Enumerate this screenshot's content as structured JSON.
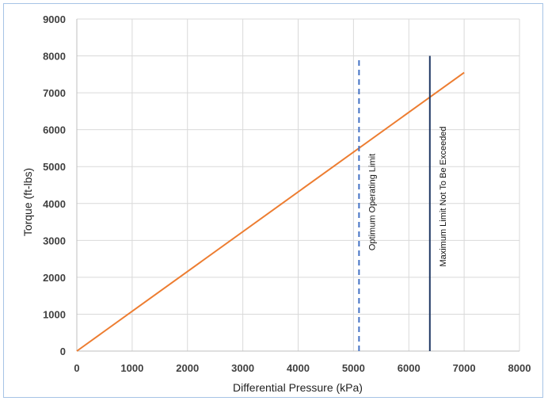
{
  "chart_data": {
    "type": "line",
    "title": "",
    "xlabel": "Differential Pressure (kPa)",
    "ylabel": "Torque (ft-lbs)",
    "xlim": [
      0,
      8000
    ],
    "ylim": [
      0,
      9000
    ],
    "x_ticks": [
      0,
      1000,
      2000,
      3000,
      4000,
      5000,
      6000,
      7000,
      8000
    ],
    "y_ticks": [
      0,
      1000,
      2000,
      3000,
      4000,
      5000,
      6000,
      7000,
      8000,
      9000
    ],
    "grid": true,
    "legend": "none",
    "series": [
      {
        "x": [
          0,
          7000
        ],
        "y": [
          0,
          7550
        ],
        "color": "#ed7d31"
      }
    ],
    "reference_lines": [
      {
        "label": "Optimum Operating Limit",
        "x": 5100,
        "y_range": [
          0,
          7950
        ],
        "style": "dashed",
        "color": "#4472c4"
      },
      {
        "label": "Maximum Limit Not To Be Exceeded",
        "x": 6380,
        "y_range": [
          0,
          8000
        ],
        "style": "solid",
        "color": "#1f3864"
      }
    ],
    "colors": {
      "grid": "#d9d9d9",
      "axis": "#bfbfbf",
      "tick_text": "#404040"
    }
  }
}
